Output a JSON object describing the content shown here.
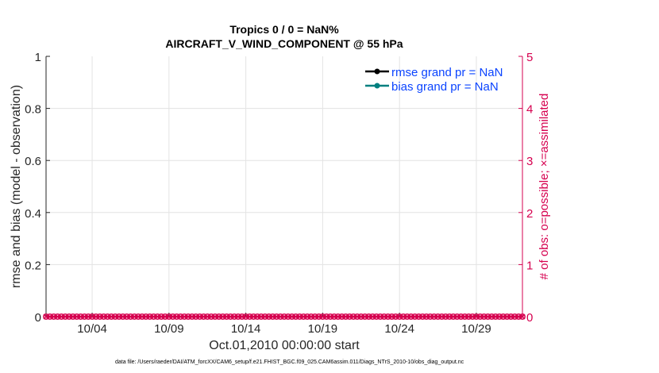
{
  "chart_data": {
    "type": "line",
    "title": [
      "Tropics 0 / 0 = NaN%",
      "AIRCRAFT_V_WIND_COMPONENT @ 55 hPa"
    ],
    "xlabel": "Oct.01,2010 00:00:00 start",
    "ylabel": "rmse and bias (model - observation)",
    "y2label": "# of obs: o=possible; ×=assimilated",
    "xlim": [
      "2010-10-01",
      "2010-11-01"
    ],
    "x_ticks": [
      "10/04",
      "10/09",
      "10/14",
      "10/19",
      "10/24",
      "10/29"
    ],
    "ylim": [
      0,
      1
    ],
    "y_ticks": [
      "0",
      "0.2",
      "0.4",
      "0.6",
      "0.8",
      "1"
    ],
    "y2lim": [
      0,
      5
    ],
    "y2_ticks": [
      "0",
      "1",
      "2",
      "3",
      "4",
      "5"
    ],
    "grid": true,
    "legend_position": "top-right",
    "series": [
      {
        "name": "rmse grand pr = NaN",
        "axis": "left",
        "color": "#000000",
        "values": "NaN"
      },
      {
        "name": "bias grand pr = NaN",
        "axis": "left",
        "color": "#008080",
        "values": "NaN"
      },
      {
        "axis": "right",
        "marker": "o",
        "color": "#d6004f",
        "interval_hours": 6,
        "value": 0
      },
      {
        "axis": "right",
        "marker": "x",
        "color": "#d6004f",
        "interval_hours": 6,
        "value": 0
      }
    ],
    "footer": "data file: /Users/raeder/DAI/ATM_forcXX/CAM6_setup/f.e21.FHIST_BGC.f09_025.CAM6assim.011/Diags_NTrS_2010-10/obs_diag_output.nc"
  }
}
